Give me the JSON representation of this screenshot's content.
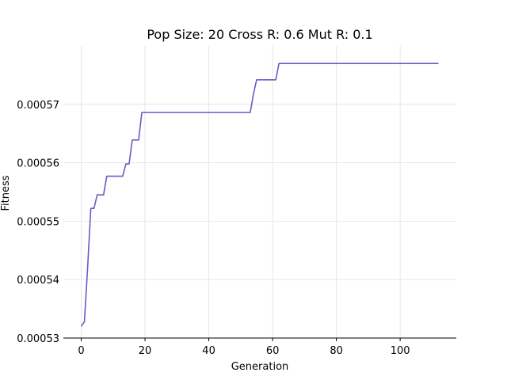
{
  "chart_data": {
    "type": "line",
    "title": "Pop Size: 20 Cross R: 0.6 Mut R: 0.1",
    "xlabel": "Generation",
    "ylabel": "Fitness",
    "xlim": [
      -5.6,
      117.6
    ],
    "ylim": [
      0.00053,
      0.00058
    ],
    "x_ticks": [
      0,
      20,
      40,
      60,
      80,
      100
    ],
    "x_tick_labels": [
      "0",
      "20",
      "40",
      "60",
      "80",
      "100"
    ],
    "y_ticks": [
      0.00053,
      0.00054,
      0.00055,
      0.00056,
      0.00057
    ],
    "y_tick_labels": [
      "0.00053",
      "0.00054",
      "0.00055",
      "0.00056",
      "0.00057"
    ],
    "grid": true,
    "line_color": "#6a5acd",
    "series": [
      {
        "x": [
          0,
          1,
          2,
          3,
          4,
          5,
          6,
          7,
          8,
          9,
          12,
          13,
          14,
          15,
          16,
          17,
          18,
          19,
          25,
          30,
          40,
          50,
          53,
          54,
          55,
          56,
          60,
          61,
          62,
          63,
          70,
          80,
          90,
          100,
          112
        ],
        "y": [
          0.000532,
          0.0005328,
          0.000542,
          0.0005522,
          0.0005522,
          0.0005545,
          0.0005545,
          0.0005545,
          0.0005577,
          0.0005577,
          0.0005577,
          0.0005577,
          0.0005598,
          0.0005598,
          0.0005639,
          0.0005639,
          0.0005639,
          0.0005686,
          0.0005686,
          0.0005686,
          0.0005686,
          0.0005686,
          0.0005686,
          0.0005718,
          0.0005742,
          0.0005742,
          0.0005742,
          0.0005742,
          0.000577,
          0.000577,
          0.000577,
          0.000577,
          0.000577,
          0.000577,
          0.000577
        ]
      }
    ]
  }
}
